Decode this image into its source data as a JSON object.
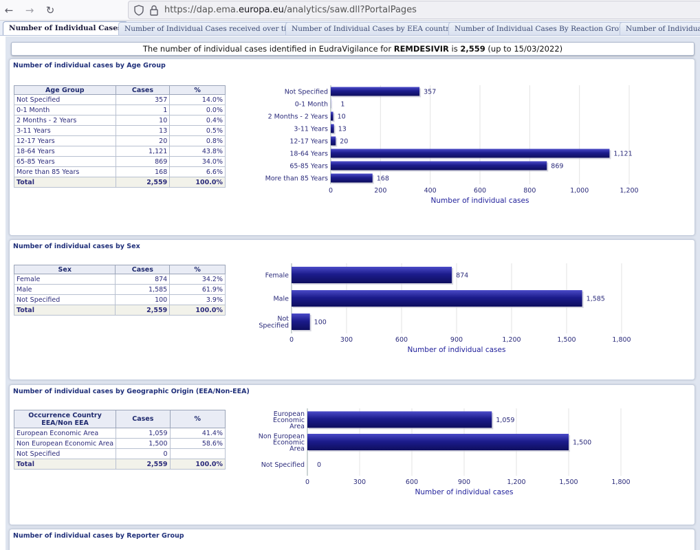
{
  "browser": {
    "url_prefix": "https://dap.ema.",
    "url_host": "europa.eu",
    "url_path": "/analytics/saw.dll?PortalPages"
  },
  "tabs": [
    "Number of Individual Cases",
    "Number of Individual Cases received over time",
    "Number of Individual Cases by EEA countries",
    "Number of Individual Cases By Reaction Groups",
    "Number of Individual C"
  ],
  "banner": {
    "text_1": "The number of individual cases identified in EudraVigilance for ",
    "drug": "REMDESIVIR",
    "text_2": " is ",
    "total": "2,559",
    "text_3": " (up to 15/03/2022)"
  },
  "colors": {
    "bar": "#1c1c8c",
    "accent_text": "#20307a"
  },
  "sections": [
    {
      "title": "Number of individual cases by Age Group",
      "table": {
        "headers": [
          "Age Group",
          "Cases",
          "%"
        ],
        "rows": [
          [
            "Not Specified",
            "357",
            "14.0%"
          ],
          [
            "0-1 Month",
            "1",
            "0.0%"
          ],
          [
            "2 Months - 2 Years",
            "10",
            "0.4%"
          ],
          [
            "3-11 Years",
            "13",
            "0.5%"
          ],
          [
            "12-17 Years",
            "20",
            "0.8%"
          ],
          [
            "18-64 Years",
            "1,121",
            "43.8%"
          ],
          [
            "65-85 Years",
            "869",
            "34.0%"
          ],
          [
            "More than 85 Years",
            "168",
            "6.6%"
          ]
        ],
        "total": [
          "Total",
          "2,559",
          "100.0%"
        ]
      }
    },
    {
      "title": "Number of individual cases by Sex",
      "table": {
        "headers": [
          "Sex",
          "Cases",
          "%"
        ],
        "rows": [
          [
            "Female",
            "874",
            "34.2%"
          ],
          [
            "Male",
            "1,585",
            "61.9%"
          ],
          [
            "Not Specified",
            "100",
            "3.9%"
          ]
        ],
        "total": [
          "Total",
          "2,559",
          "100.0%"
        ]
      }
    },
    {
      "title": "Number of individual cases by Geographic Origin (EEA/Non-EEA)",
      "table": {
        "headers": [
          "Occurrence Country EEA/Non EEA",
          "Cases",
          "%"
        ],
        "rows": [
          [
            "European Economic Area",
            "1,059",
            "41.4%"
          ],
          [
            "Non European Economic Area",
            "1,500",
            "58.6%"
          ],
          [
            "Not Specified",
            "0",
            ""
          ]
        ],
        "total": [
          "Total",
          "2,559",
          "100.0%"
        ]
      }
    },
    {
      "title": "Number of individual cases by Reporter Group"
    }
  ],
  "chart_data": [
    {
      "type": "bar",
      "orientation": "horizontal",
      "categories": [
        "Not Specified",
        "0-1 Month",
        "2 Months - 2 Years",
        "3-11 Years",
        "12-17 Years",
        "18-64 Years",
        "65-85 Years",
        "More than 85 Years"
      ],
      "values": [
        357,
        1,
        10,
        13,
        20,
        1121,
        869,
        168
      ],
      "value_labels": [
        "357",
        "1",
        "10",
        "13",
        "20",
        "1,121",
        "869",
        "168"
      ],
      "xlabel": "Number of individual cases",
      "xlim": [
        0,
        1200
      ],
      "ticks": [
        0,
        200,
        400,
        600,
        800,
        1000,
        1200
      ],
      "tick_labels": [
        "0",
        "200",
        "400",
        "600",
        "800",
        "1,000",
        "1,200"
      ],
      "grid": true
    },
    {
      "type": "bar",
      "orientation": "horizontal",
      "categories": [
        [
          "Female"
        ],
        [
          "Male"
        ],
        [
          "Not",
          "Specified"
        ]
      ],
      "values": [
        874,
        1585,
        100
      ],
      "value_labels": [
        "874",
        "1,585",
        "100"
      ],
      "xlabel": "Number of individual cases",
      "xlim": [
        0,
        1800
      ],
      "ticks": [
        0,
        300,
        600,
        900,
        1200,
        1500,
        1800
      ],
      "tick_labels": [
        "0",
        "300",
        "600",
        "900",
        "1,200",
        "1,500",
        "1,800"
      ],
      "grid": true
    },
    {
      "type": "bar",
      "orientation": "horizontal",
      "categories": [
        [
          "European",
          "Economic",
          "Area"
        ],
        [
          "Non European",
          "Economic",
          "Area"
        ],
        [
          "Not Specified"
        ]
      ],
      "values": [
        1059,
        1500,
        0
      ],
      "value_labels": [
        "1,059",
        "1,500",
        "0"
      ],
      "xlabel": "Number of individual cases",
      "xlim": [
        0,
        1800
      ],
      "ticks": [
        0,
        300,
        600,
        900,
        1200,
        1500,
        1800
      ],
      "tick_labels": [
        "0",
        "300",
        "600",
        "900",
        "1,200",
        "1,500",
        "1,800"
      ],
      "grid": true
    }
  ]
}
